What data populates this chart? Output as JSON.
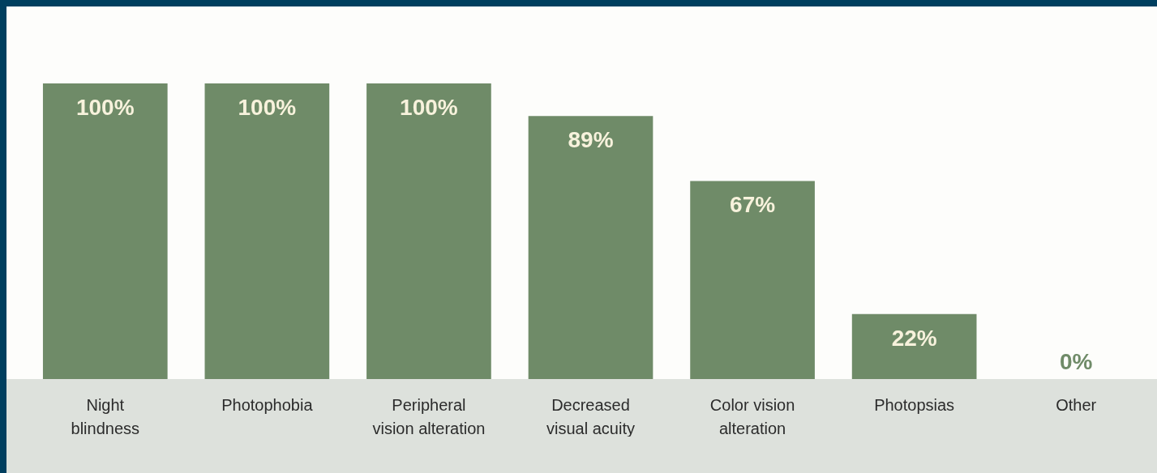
{
  "chart_data": {
    "type": "bar",
    "categories": [
      "Night blindness",
      "Photophobia",
      "Peripheral vision alteration",
      "Decreased visual acuity",
      "Color vision alteration",
      "Photopsias",
      "Other"
    ],
    "values": [
      100,
      100,
      100,
      89,
      67,
      22,
      0
    ],
    "value_labels": [
      "100%",
      "100%",
      "100%",
      "89%",
      "67%",
      "22%",
      "0%"
    ],
    "color": "#6f8b68"
  }
}
